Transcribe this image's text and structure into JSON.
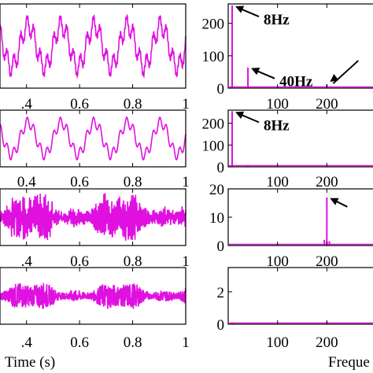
{
  "chart_data": [
    {
      "type": "line",
      "panel": "time-1",
      "x_ticks": [
        ".4",
        "0.6",
        "0.8",
        "1"
      ],
      "y_ticks": [],
      "xlim": [
        0.3,
        1.0
      ],
      "signal": {
        "components_hz": [
          8,
          40,
          200
        ],
        "amplitudes": [
          1.0,
          0.45,
          0.12
        ],
        "color": "#e010e0"
      }
    },
    {
      "type": "line",
      "panel": "time-2",
      "x_ticks": [
        "0.4",
        "0.6",
        "0.8",
        "1"
      ],
      "y_ticks": [],
      "xlim": [
        0.3,
        1.0
      ],
      "signal": {
        "components_hz": [
          8,
          40
        ],
        "amplitudes": [
          1.0,
          0.35
        ],
        "color": "#e010e0"
      }
    },
    {
      "type": "line",
      "panel": "time-3",
      "x_ticks": [
        ".4",
        "0.6",
        "0.8",
        "1"
      ],
      "y_ticks": [],
      "xlim": [
        0.3,
        1.0
      ],
      "signal": {
        "components_hz": [
          200
        ],
        "amplitudes": [
          1.0
        ],
        "color": "#e010e0",
        "noisy": true
      }
    },
    {
      "type": "line",
      "panel": "time-4",
      "x_ticks": [
        ".4",
        "0.6",
        "0.8",
        "1"
      ],
      "y_ticks": [],
      "xlim": [
        0.3,
        1.0
      ],
      "xlabel": "Time (s)",
      "signal": {
        "components_hz": [],
        "amplitudes": [],
        "color": "#e010e0",
        "noisy": true
      }
    },
    {
      "type": "bar",
      "panel": "freq-1",
      "x_ticks": [
        "100",
        "200"
      ],
      "y_ticks": [
        "0",
        "100",
        "200"
      ],
      "xlim": [
        0,
        300
      ],
      "ylim": [
        0,
        260
      ],
      "peaks": [
        {
          "x": 8,
          "y": 255
        },
        {
          "x": 40,
          "y": 64
        },
        {
          "x": 200,
          "y": 12
        }
      ],
      "annotations": [
        {
          "text": "8Hz",
          "x": 8,
          "y": 255
        },
        {
          "text": "40Hz",
          "x": 40,
          "y": 64
        },
        {
          "text": "",
          "x": 200,
          "y": 12
        }
      ]
    },
    {
      "type": "bar",
      "panel": "freq-2",
      "x_ticks": [
        "100",
        "200"
      ],
      "y_ticks": [
        "0",
        "100",
        "200"
      ],
      "xlim": [
        0,
        300
      ],
      "ylim": [
        0,
        260
      ],
      "peaks": [
        {
          "x": 8,
          "y": 255
        },
        {
          "x": 40,
          "y": 8
        }
      ],
      "annotations": [
        {
          "text": "8Hz",
          "x": 8,
          "y": 255
        }
      ]
    },
    {
      "type": "bar",
      "panel": "freq-3",
      "x_ticks": [
        "100",
        "200"
      ],
      "y_ticks": [
        "0",
        "10",
        "20"
      ],
      "xlim": [
        0,
        300
      ],
      "ylim": [
        0,
        20
      ],
      "peaks": [
        {
          "x": 200,
          "y": 17
        },
        {
          "x": 195,
          "y": 2
        },
        {
          "x": 205,
          "y": 1.5
        }
      ],
      "annotations": [
        {
          "text": "",
          "x": 200,
          "y": 17
        }
      ]
    },
    {
      "type": "bar",
      "panel": "freq-4",
      "x_ticks": [
        "100",
        "200"
      ],
      "y_ticks": [
        "0",
        "2"
      ],
      "xlim": [
        0,
        300
      ],
      "ylim": [
        0,
        3.5
      ],
      "xlabel": "Freque",
      "peaks": [
        {
          "x": 200,
          "y": 0.15
        },
        {
          "x": 8,
          "y": 0.1
        }
      ]
    }
  ],
  "colors": {
    "trace": "#e010e0",
    "axis": "#000000"
  }
}
